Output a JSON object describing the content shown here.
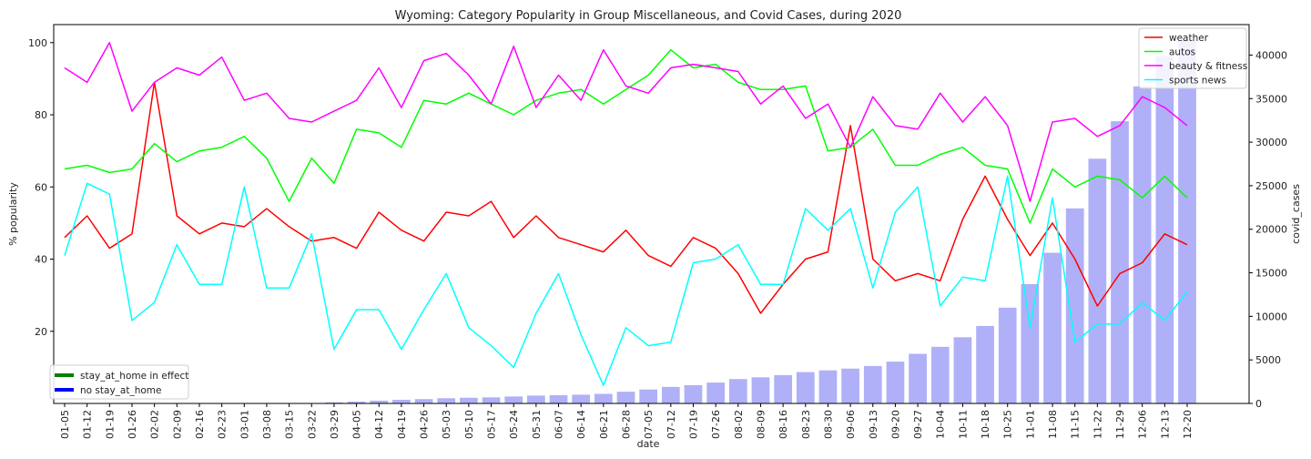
{
  "chart_data": {
    "type": "line",
    "title": "Wyoming: Category Popularity in Group Miscellaneous, and Covid Cases, during 2020",
    "xlabel": "date",
    "ylabel": "% popularity",
    "y2label": "covid_cases",
    "ylim": [
      0,
      105
    ],
    "y2lim": [
      0,
      43500
    ],
    "yticks": [
      20,
      40,
      60,
      80,
      100
    ],
    "y2ticks": [
      0,
      5000,
      10000,
      15000,
      20000,
      25000,
      30000,
      35000,
      40000
    ],
    "grid": false,
    "legend_placement": "top-right",
    "categories": [
      "01-05",
      "01-12",
      "01-19",
      "01-26",
      "02-02",
      "02-09",
      "02-16",
      "02-23",
      "03-01",
      "03-08",
      "03-15",
      "03-22",
      "03-29",
      "04-05",
      "04-12",
      "04-19",
      "04-26",
      "05-03",
      "05-10",
      "05-17",
      "05-24",
      "05-31",
      "06-07",
      "06-14",
      "06-21",
      "06-28",
      "07-05",
      "07-12",
      "07-19",
      "07-26",
      "08-02",
      "08-09",
      "08-16",
      "08-23",
      "08-30",
      "09-06",
      "09-13",
      "09-20",
      "09-27",
      "10-04",
      "10-11",
      "10-18",
      "10-25",
      "11-01",
      "11-08",
      "11-15",
      "11-22",
      "11-29",
      "12-06",
      "12-13",
      "12-20"
    ],
    "series": [
      {
        "name": "weather",
        "color": "#ff0000",
        "values": [
          46,
          52,
          43,
          47,
          89,
          52,
          47,
          50,
          49,
          54,
          49,
          45,
          46,
          43,
          53,
          48,
          45,
          53,
          52,
          56,
          46,
          52,
          46,
          44,
          42,
          48,
          41,
          38,
          46,
          43,
          36,
          25,
          33,
          40,
          42,
          77,
          40,
          34,
          36,
          34,
          51,
          63,
          51,
          41,
          50,
          40,
          27,
          36,
          39,
          47,
          44
        ]
      },
      {
        "name": "autos",
        "color": "#00ff00",
        "values": [
          65,
          66,
          64,
          65,
          72,
          67,
          70,
          71,
          74,
          68,
          56,
          68,
          61,
          76,
          75,
          71,
          84,
          83,
          86,
          83,
          80,
          84,
          86,
          87,
          83,
          87,
          91,
          98,
          93,
          94,
          89,
          87,
          87,
          88,
          70,
          71,
          76,
          66,
          66,
          69,
          71,
          66,
          65,
          50,
          65,
          60,
          63,
          62,
          57,
          63,
          57
        ]
      },
      {
        "name": "beauty & fitness",
        "color": "#ff00ff",
        "values": [
          93,
          89,
          100,
          81,
          89,
          93,
          91,
          96,
          84,
          86,
          79,
          78,
          81,
          84,
          93,
          82,
          95,
          97,
          91,
          83,
          99,
          82,
          91,
          84,
          98,
          88,
          86,
          93,
          94,
          93,
          92,
          83,
          88,
          79,
          83,
          71,
          85,
          77,
          76,
          86,
          78,
          85,
          77,
          56,
          78,
          79,
          74,
          77,
          85,
          82,
          77
        ]
      },
      {
        "name": "sports news",
        "color": "#00ffff",
        "values": [
          41,
          61,
          58,
          23,
          28,
          44,
          33,
          33,
          60,
          32,
          32,
          47,
          15,
          26,
          26,
          15,
          26,
          36,
          21,
          16,
          10,
          25,
          36,
          19,
          5,
          21,
          16,
          17,
          39,
          40,
          44,
          33,
          33,
          54,
          48,
          54,
          32,
          53,
          60,
          27,
          35,
          34,
          63,
          21,
          57,
          17,
          22,
          22,
          28,
          23,
          31
        ]
      }
    ],
    "bars": {
      "name": "covid_cases",
      "color": "#b0b0f8",
      "values": [
        0,
        0,
        0,
        0,
        0,
        0,
        0,
        0,
        0,
        0,
        0,
        30,
        120,
        200,
        320,
        420,
        500,
        600,
        650,
        700,
        800,
        900,
        950,
        1000,
        1100,
        1350,
        1600,
        1900,
        2100,
        2400,
        2800,
        3000,
        3250,
        3600,
        3800,
        4000,
        4300,
        4800,
        5700,
        6500,
        7600,
        8900,
        11000,
        13700,
        17300,
        22400,
        28100,
        32400,
        36400,
        39900,
        41700
      ]
    },
    "legend_extra": [
      {
        "label": "stay_at_home in effect",
        "color": "#008000"
      },
      {
        "label": "no stay_at_home",
        "color": "#0000ff"
      }
    ]
  }
}
